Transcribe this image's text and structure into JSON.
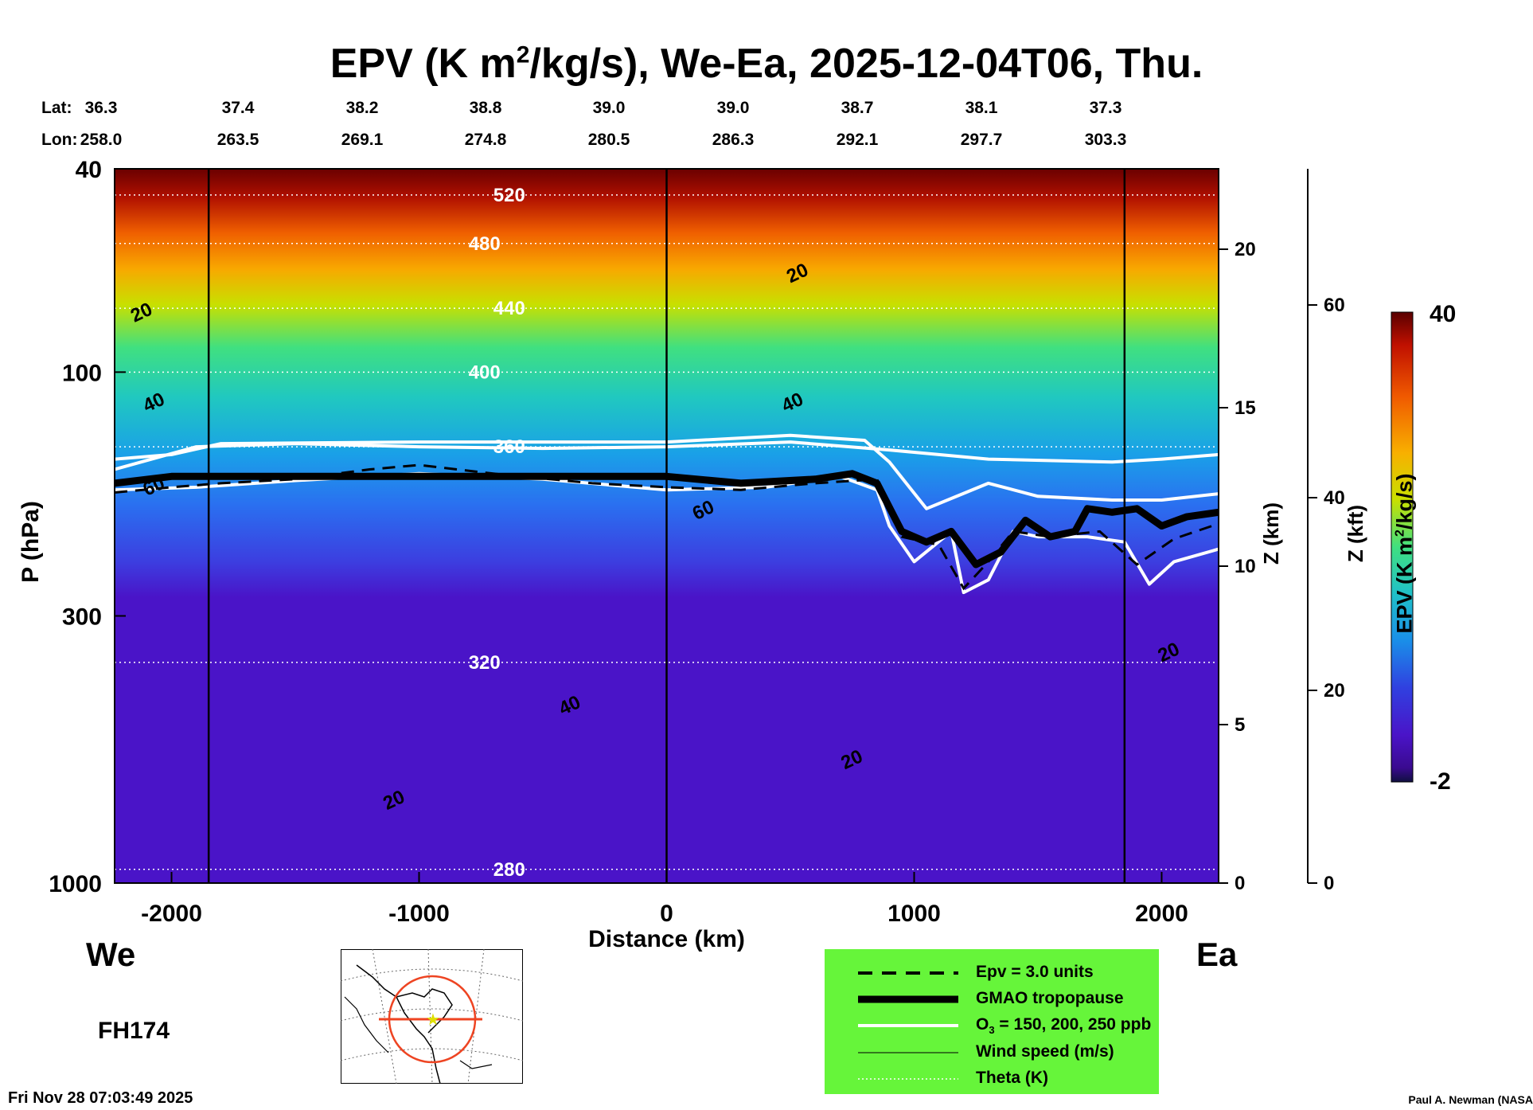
{
  "title": {
    "main_pre": "EPV (K m",
    "sup": "2",
    "main_post": "/kg/s), We-Ea, 2025-12-04T06, Thu."
  },
  "latlon": {
    "lat_label": "Lat:",
    "lon_label": "Lon:",
    "lats": [
      "36.3",
      "37.4",
      "38.2",
      "38.8",
      "39.0",
      "39.0",
      "38.7",
      "38.1",
      "37.3"
    ],
    "lons": [
      "258.0",
      "263.5",
      "269.1",
      "274.8",
      "280.5",
      "286.3",
      "292.1",
      "297.7",
      "303.3"
    ]
  },
  "direction": {
    "west": "We",
    "east": "Ea"
  },
  "forecast_hour": "FH174",
  "timestamp": "Fri Nov 28 07:03:49 2025",
  "author": "Paul A. Newman (NASA",
  "colorbar": {
    "max_label": "40",
    "min_label": "-2",
    "title_pre": "EPV (K m",
    "title_sup": "2",
    "title_post": "/kg/s)"
  },
  "legend": {
    "items": [
      {
        "label": "Epv = 3.0 units",
        "style": "dashed"
      },
      {
        "label": "GMAO tropopause",
        "style": "thick"
      },
      {
        "label_pre": "O",
        "label_sub": "3",
        "label_post": " = 150, 200, 250 ppb",
        "style": "white"
      },
      {
        "label": "Wind speed (m/s)",
        "style": "thin"
      },
      {
        "label": "Theta (K)",
        "style": "dotted"
      }
    ],
    "background": "#66f53a"
  },
  "chart_data": {
    "type": "heatmap",
    "title": "EPV (K m²/kg/s), We-Ea, 2025-12-04T06, Thu.",
    "xlabel": "Distance (km)",
    "ylabel": "P (hPa)",
    "z_km_label": "Z (km)",
    "z_kft_label": "Z (kft)",
    "xlim": [
      -2230,
      2230
    ],
    "x_ticks": [
      -2000,
      -1000,
      0,
      1000,
      2000
    ],
    "x_tick_labels": [
      "-2000",
      "-1000",
      "0",
      "1000",
      "2000"
    ],
    "y_scale": "log",
    "ylim": [
      1000,
      40
    ],
    "y_ticks": [
      1000,
      300,
      100,
      40
    ],
    "y_tick_labels": [
      "1000",
      "300",
      "100",
      "40"
    ],
    "z_km_ticks": [
      0,
      5,
      10,
      15,
      20
    ],
    "z_kft_ticks": [
      0,
      20,
      40,
      60
    ],
    "colorbar_range": [
      -2,
      40
    ],
    "vertical_markers_km": [
      -1850,
      0,
      1850
    ],
    "theta_levels": [
      {
        "label": "520",
        "p": 45
      },
      {
        "label": "480",
        "p": 56
      },
      {
        "label": "440",
        "p": 75
      },
      {
        "label": "400",
        "p": 100
      },
      {
        "label": "360",
        "p": 140
      },
      {
        "label": "320",
        "p": 370
      },
      {
        "label": "280",
        "p": 940
      }
    ],
    "tropopause_km": [
      [
        -2230,
        165
      ],
      [
        -2000,
        160
      ],
      [
        -1800,
        160
      ],
      [
        -1500,
        160
      ],
      [
        -1000,
        160
      ],
      [
        -500,
        160
      ],
      [
        0,
        160
      ],
      [
        300,
        165
      ],
      [
        600,
        162
      ],
      [
        750,
        158
      ],
      [
        850,
        165
      ],
      [
        950,
        205
      ],
      [
        1050,
        215
      ],
      [
        1150,
        205
      ],
      [
        1250,
        238
      ],
      [
        1350,
        225
      ],
      [
        1450,
        195
      ],
      [
        1550,
        210
      ],
      [
        1650,
        205
      ],
      [
        1700,
        185
      ],
      [
        1800,
        188
      ],
      [
        1900,
        185
      ],
      [
        2000,
        200
      ],
      [
        2100,
        192
      ],
      [
        2230,
        188
      ]
    ],
    "ozone_150_km": [
      [
        -2230,
        170
      ],
      [
        -1900,
        168
      ],
      [
        -1500,
        163
      ],
      [
        -1000,
        158
      ],
      [
        -500,
        162
      ],
      [
        0,
        170
      ],
      [
        400,
        168
      ],
      [
        700,
        160
      ],
      [
        850,
        170
      ],
      [
        900,
        200
      ],
      [
        1000,
        235
      ],
      [
        1150,
        205
      ],
      [
        1200,
        270
      ],
      [
        1300,
        255
      ],
      [
        1400,
        205
      ],
      [
        1500,
        210
      ],
      [
        1700,
        210
      ],
      [
        1850,
        215
      ],
      [
        1950,
        260
      ],
      [
        2050,
        235
      ],
      [
        2230,
        222
      ]
    ],
    "ozone_200_km": [
      [
        -2230,
        148
      ],
      [
        -2000,
        145
      ],
      [
        -1800,
        138
      ],
      [
        -1000,
        137
      ],
      [
        0,
        137
      ],
      [
        500,
        133
      ],
      [
        800,
        136
      ],
      [
        900,
        150
      ],
      [
        1050,
        185
      ],
      [
        1300,
        165
      ],
      [
        1500,
        175
      ],
      [
        1800,
        178
      ],
      [
        2000,
        178
      ],
      [
        2230,
        173
      ]
    ],
    "ozone_250_km": [
      [
        -2230,
        155
      ],
      [
        -1900,
        140
      ],
      [
        -1500,
        138
      ],
      [
        -1000,
        140
      ],
      [
        -500,
        141
      ],
      [
        0,
        140
      ],
      [
        500,
        137
      ],
      [
        900,
        142
      ],
      [
        1300,
        148
      ],
      [
        1800,
        150
      ],
      [
        2000,
        148
      ],
      [
        2230,
        145
      ]
    ],
    "epv3_km": [
      [
        -2230,
        172
      ],
      [
        -2000,
        168
      ],
      [
        -1800,
        165
      ],
      [
        -1500,
        162
      ],
      [
        -1200,
        155
      ],
      [
        -1000,
        152
      ],
      [
        -700,
        158
      ],
      [
        -300,
        165
      ],
      [
        0,
        168
      ],
      [
        300,
        170
      ],
      [
        600,
        165
      ],
      [
        850,
        162
      ],
      [
        950,
        210
      ],
      [
        1100,
        218
      ],
      [
        1200,
        265
      ],
      [
        1300,
        235
      ],
      [
        1400,
        205
      ],
      [
        1550,
        210
      ],
      [
        1750,
        205
      ],
      [
        1900,
        238
      ],
      [
        2050,
        212
      ],
      [
        2230,
        198
      ]
    ],
    "wind_labels": [
      {
        "label": "20",
        "x": -2150,
        "p": 80
      },
      {
        "label": "40",
        "x": -2100,
        "p": 120
      },
      {
        "label": "60",
        "x": -2100,
        "p": 175
      },
      {
        "label": "20",
        "x": 500,
        "p": 67
      },
      {
        "label": "40",
        "x": 480,
        "p": 120
      },
      {
        "label": "60",
        "x": 120,
        "p": 195
      },
      {
        "label": "40",
        "x": -420,
        "p": 470
      },
      {
        "label": "20",
        "x": -1130,
        "p": 720
      },
      {
        "label": "20",
        "x": 720,
        "p": 600
      },
      {
        "label": "20",
        "x": 2000,
        "p": 370
      }
    ]
  }
}
